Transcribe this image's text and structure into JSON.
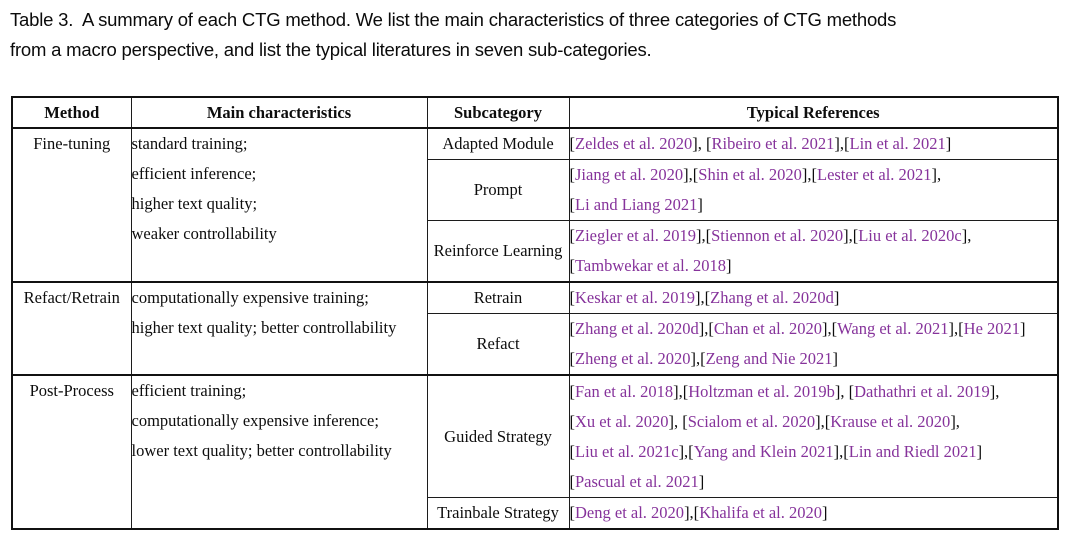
{
  "caption": {
    "lines": [
      "Table 3.  A summary of each CTG method. We list the main characteristics of three categories of CTG methods",
      "from a macro perspective, and list the typical literatures in seven sub-categories."
    ]
  },
  "colors": {
    "citation_purple": "#86339B",
    "text": "#0d0d0d",
    "border": "#111111"
  },
  "table": {
    "headers": [
      "Method",
      "Main characteristics",
      "Subcategory",
      "Typical References"
    ],
    "sections": [
      {
        "method": "Fine-tuning",
        "characteristics": [
          "standard training;",
          "efficient inference;",
          "higher text quality;",
          "weaker controllability"
        ],
        "rows": [
          {
            "subcategory": "Adapted Module",
            "reference_lines": [
              "[Zeldes et al. 2020], [Ribeiro et al. 2021],[Lin et al. 2021]"
            ]
          },
          {
            "subcategory": "Prompt",
            "reference_lines": [
              "[Jiang et al. 2020],[Shin et al. 2020],[Lester et al. 2021],",
              "[Li and Liang 2021]"
            ]
          },
          {
            "subcategory": "Reinforce Learning",
            "reference_lines": [
              "[Ziegler et al. 2019],[Stiennon et al. 2020],[Liu et al. 2020c],",
              "[Tambwekar et al. 2018]"
            ]
          }
        ]
      },
      {
        "method": "Refact/Retrain",
        "characteristics": [
          "computationally expensive training;",
          "higher text quality; better controllability"
        ],
        "rows": [
          {
            "subcategory": "Retrain",
            "reference_lines": [
              "[Keskar et al. 2019],[Zhang et al. 2020d]"
            ]
          },
          {
            "subcategory": "Refact",
            "reference_lines": [
              "[Zhang et al. 2020d],[Chan et al. 2020],[Wang et al. 2021],[He 2021]",
              "[Zheng et al. 2020],[Zeng and Nie 2021]"
            ]
          }
        ]
      },
      {
        "method": "Post-Process",
        "characteristics": [
          "efficient training;",
          "computationally expensive inference;",
          "lower text quality; better controllability"
        ],
        "rows": [
          {
            "subcategory": "Guided Strategy",
            "reference_lines": [
              "[Fan et al. 2018],[Holtzman et al. 2019b], [Dathathri et al. 2019],",
              "[Xu et al. 2020], [Scialom et al. 2020],[Krause et al. 2020],",
              "[Liu et al. 2021c],[Yang and Klein 2021],[Lin and Riedl 2021]",
              "[Pascual et al. 2021]"
            ]
          },
          {
            "subcategory": "Trainbale Strategy",
            "reference_lines": [
              "[Deng et al. 2020],[Khalifa et al. 2020]"
            ]
          }
        ]
      }
    ]
  }
}
